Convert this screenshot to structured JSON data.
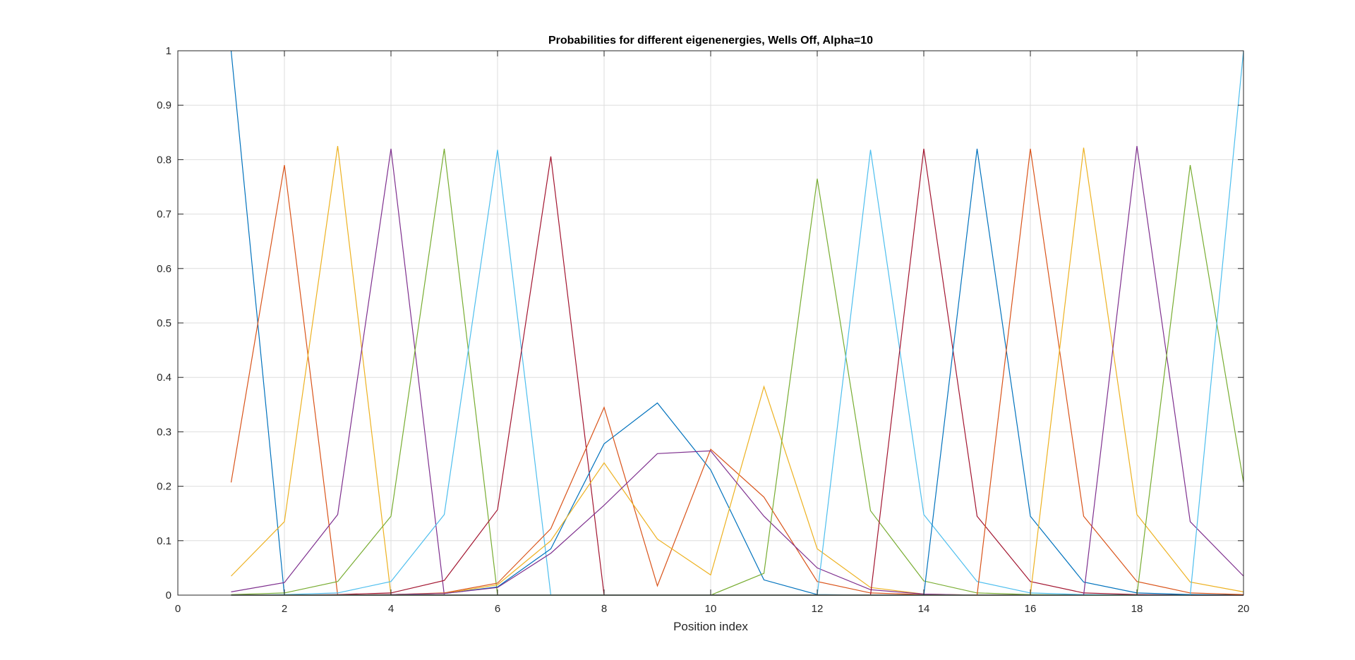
{
  "chart_data": {
    "type": "line",
    "title": "Probabilities for different eigenenergies, Wells Off, Alpha=10",
    "xlabel": "Position index",
    "ylabel": "",
    "xlim": [
      0,
      20
    ],
    "ylim": [
      0,
      1
    ],
    "xticks": [
      0,
      2,
      4,
      6,
      8,
      10,
      12,
      14,
      16,
      18,
      20
    ],
    "yticks": [
      0,
      0.1,
      0.2,
      0.3,
      0.4,
      0.5,
      0.6,
      0.7,
      0.8,
      0.9,
      1
    ],
    "xtick_labels": [
      "0",
      "2",
      "4",
      "6",
      "8",
      "10",
      "12",
      "14",
      "16",
      "18",
      "20"
    ],
    "ytick_labels": [
      "0",
      "0.1",
      "0.2",
      "0.3",
      "0.4",
      "0.5",
      "0.6",
      "0.7",
      "0.8",
      "0.9",
      "1"
    ],
    "grid": true,
    "x": [
      1,
      2,
      3,
      4,
      5,
      6,
      7,
      8,
      9,
      10,
      11,
      12,
      13,
      14,
      15,
      16,
      17,
      18,
      19,
      20
    ],
    "series": [
      {
        "color": "#0072BD",
        "values": [
          1.0,
          0.0,
          0.0,
          0.0,
          0.0,
          0.0,
          0.0,
          0.0,
          0.0,
          0.0,
          0.0,
          0.0,
          0.0,
          0.0,
          0.0,
          0.0,
          0.0,
          0.0,
          0.0,
          0.0
        ]
      },
      {
        "color": "#D95319",
        "values": [
          0.207,
          0.79,
          0.0,
          0.0,
          0.0,
          0.0,
          0.0,
          0.0,
          0.0,
          0.0,
          0.0,
          0.0,
          0.0,
          0.0,
          0.0,
          0.0,
          0.0,
          0.0,
          0.0,
          0.0
        ]
      },
      {
        "color": "#EDB120",
        "values": [
          0.035,
          0.135,
          0.825,
          0.0,
          0.0,
          0.0,
          0.0,
          0.0,
          0.0,
          0.0,
          0.0,
          0.0,
          0.0,
          0.0,
          0.0,
          0.0,
          0.0,
          0.0,
          0.0,
          0.0
        ]
      },
      {
        "color": "#7E2F8E",
        "values": [
          0.006,
          0.023,
          0.148,
          0.82,
          0.0,
          0.0,
          0.0,
          0.0,
          0.0,
          0.0,
          0.0,
          0.0,
          0.0,
          0.0,
          0.0,
          0.0,
          0.0,
          0.0,
          0.0,
          0.0
        ]
      },
      {
        "color": "#77AC30",
        "values": [
          0.001,
          0.004,
          0.025,
          0.145,
          0.82,
          0.0,
          0.0,
          0.0,
          0.0,
          0.0,
          0.0,
          0.0,
          0.0,
          0.0,
          0.0,
          0.0,
          0.0,
          0.0,
          0.0,
          0.0
        ]
      },
      {
        "color": "#4DBEEE",
        "values": [
          0.0,
          0.001,
          0.004,
          0.025,
          0.148,
          0.818,
          0.0,
          0.0,
          0.0,
          0.0,
          0.0,
          0.0,
          0.0,
          0.0,
          0.0,
          0.0,
          0.0,
          0.0,
          0.0,
          0.0
        ]
      },
      {
        "color": "#A2142F",
        "values": [
          0.0,
          0.0,
          0.001,
          0.004,
          0.027,
          0.157,
          0.806,
          0.0,
          0.0,
          0.0,
          0.0,
          0.0,
          0.0,
          0.0,
          0.0,
          0.0,
          0.0,
          0.0,
          0.0,
          0.0
        ]
      },
      {
        "color": "#0072BD",
        "values": [
          0.0,
          0.0,
          0.0,
          0.001,
          0.003,
          0.015,
          0.085,
          0.278,
          0.353,
          0.23,
          0.028,
          0.001,
          0.0,
          0.0,
          0.0,
          0.0,
          0.0,
          0.0,
          0.0,
          0.0
        ]
      },
      {
        "color": "#D95319",
        "values": [
          0.0,
          0.0,
          0.0,
          0.001,
          0.004,
          0.022,
          0.122,
          0.345,
          0.017,
          0.268,
          0.18,
          0.025,
          0.004,
          0.001,
          0.0,
          0.0,
          0.0,
          0.0,
          0.0,
          0.0
        ]
      },
      {
        "color": "#EDB120",
        "values": [
          0.0,
          0.0,
          0.0,
          0.001,
          0.003,
          0.019,
          0.1,
          0.243,
          0.103,
          0.037,
          0.383,
          0.085,
          0.014,
          0.002,
          0.0,
          0.0,
          0.0,
          0.0,
          0.0,
          0.0
        ]
      },
      {
        "color": "#7E2F8E",
        "values": [
          0.0,
          0.0,
          0.0,
          0.001,
          0.003,
          0.014,
          0.077,
          0.165,
          0.26,
          0.265,
          0.145,
          0.05,
          0.01,
          0.002,
          0.0,
          0.0,
          0.0,
          0.0,
          0.0,
          0.0
        ]
      },
      {
        "color": "#77AC30",
        "values": [
          0.0,
          0.0,
          0.0,
          0.0,
          0.0,
          0.0,
          0.0,
          0.0,
          0.0,
          0.0,
          0.04,
          0.765,
          0.155,
          0.026,
          0.004,
          0.001,
          0.0,
          0.0,
          0.0,
          0.0
        ]
      },
      {
        "color": "#4DBEEE",
        "values": [
          0.0,
          0.0,
          0.0,
          0.0,
          0.0,
          0.0,
          0.0,
          0.0,
          0.0,
          0.0,
          0.0,
          0.0,
          0.818,
          0.148,
          0.025,
          0.004,
          0.001,
          0.0,
          0.0,
          0.0
        ]
      },
      {
        "color": "#A2142F",
        "values": [
          0.0,
          0.0,
          0.0,
          0.0,
          0.0,
          0.0,
          0.0,
          0.0,
          0.0,
          0.0,
          0.0,
          0.0,
          0.0,
          0.82,
          0.145,
          0.025,
          0.004,
          0.001,
          0.0,
          0.0
        ]
      },
      {
        "color": "#0072BD",
        "values": [
          0.0,
          0.0,
          0.0,
          0.0,
          0.0,
          0.0,
          0.0,
          0.0,
          0.0,
          0.0,
          0.0,
          0.0,
          0.0,
          0.0,
          0.82,
          0.145,
          0.024,
          0.004,
          0.001,
          0.0
        ]
      },
      {
        "color": "#D95319",
        "values": [
          0.0,
          0.0,
          0.0,
          0.0,
          0.0,
          0.0,
          0.0,
          0.0,
          0.0,
          0.0,
          0.0,
          0.0,
          0.0,
          0.0,
          0.0,
          0.82,
          0.145,
          0.025,
          0.004,
          0.001
        ]
      },
      {
        "color": "#EDB120",
        "values": [
          0.0,
          0.0,
          0.0,
          0.0,
          0.0,
          0.0,
          0.0,
          0.0,
          0.0,
          0.0,
          0.0,
          0.0,
          0.0,
          0.0,
          0.0,
          0.0,
          0.822,
          0.148,
          0.024,
          0.006
        ]
      },
      {
        "color": "#7E2F8E",
        "values": [
          0.0,
          0.0,
          0.0,
          0.0,
          0.0,
          0.0,
          0.0,
          0.0,
          0.0,
          0.0,
          0.0,
          0.0,
          0.0,
          0.0,
          0.0,
          0.0,
          0.0,
          0.825,
          0.135,
          0.035
        ]
      },
      {
        "color": "#77AC30",
        "values": [
          0.0,
          0.0,
          0.0,
          0.0,
          0.0,
          0.0,
          0.0,
          0.0,
          0.0,
          0.0,
          0.0,
          0.0,
          0.0,
          0.0,
          0.0,
          0.0,
          0.0,
          0.0,
          0.79,
          0.207
        ]
      },
      {
        "color": "#4DBEEE",
        "values": [
          0.0,
          0.0,
          0.0,
          0.0,
          0.0,
          0.0,
          0.0,
          0.0,
          0.0,
          0.0,
          0.0,
          0.0,
          0.0,
          0.0,
          0.0,
          0.0,
          0.0,
          0.0,
          0.0,
          1.0
        ]
      }
    ]
  }
}
